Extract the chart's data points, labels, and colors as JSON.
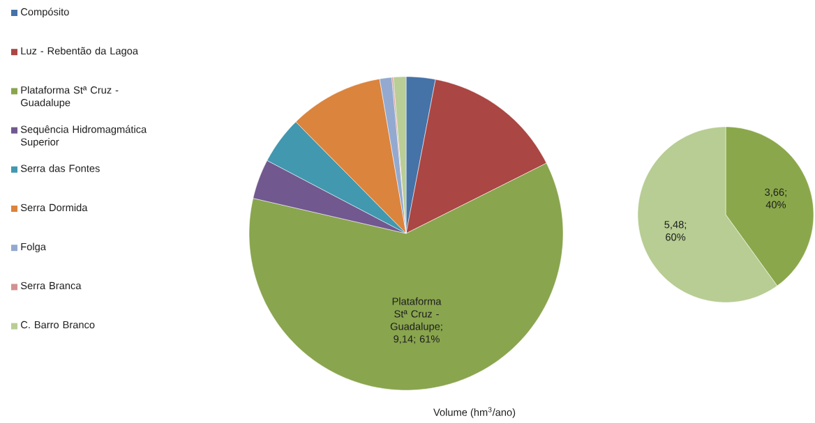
{
  "chart_data": [
    {
      "type": "pie",
      "legend": "left",
      "categories": [
        "Compósito",
        "Luz - Rebentão da Lagoa",
        "Plataforma Stª Cruz - Guadalupe",
        "Sequência Hidromagmática Superior",
        "Serra das Fontes",
        "Serra Dormida",
        "Folga",
        "Serra Branca",
        "C. Barro Branco"
      ],
      "values": [
        3.0,
        14.6,
        61,
        4.1,
        4.9,
        9.7,
        1.25,
        0.15,
        1.3
      ],
      "colors": [
        "#4572a7",
        "#aa4643",
        "#89a54e",
        "#71588f",
        "#4198af",
        "#db843d",
        "#93a9cf",
        "#d19392",
        "#b9cd96"
      ],
      "value_labels": [
        null,
        null,
        "Plataforma Stª Cruz - Guadalupe; 9,14; 61%",
        null,
        null,
        null,
        null,
        null,
        null
      ],
      "annotations": [
        "Volume (hm$^{3}$/ano)"
      ]
    },
    {
      "type": "pie",
      "categories": [
        null,
        null
      ],
      "values": [
        3.66,
        5.48
      ],
      "colors": [
        "#8aa84b",
        "#b7cd93"
      ],
      "value_labels": [
        "3,66; 40%",
        "5,48; 60%"
      ]
    }
  ]
}
